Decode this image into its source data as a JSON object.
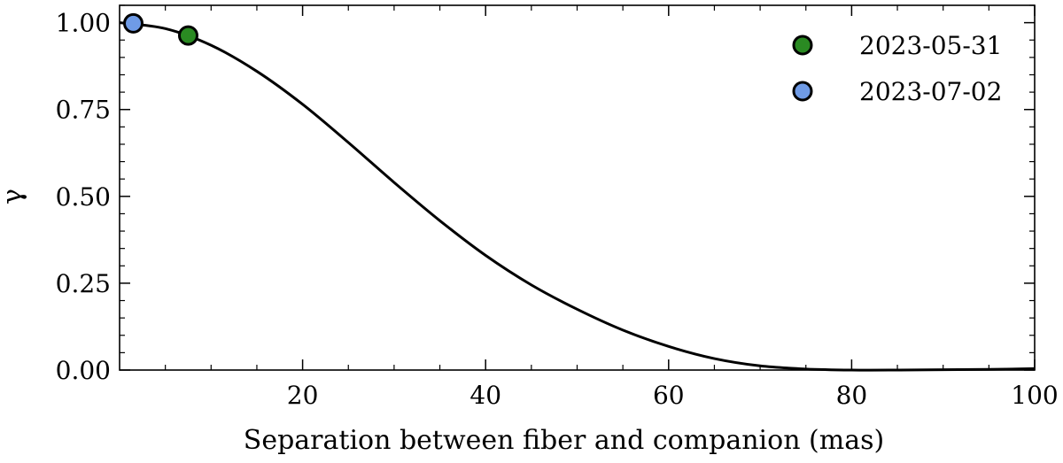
{
  "chart_data": {
    "type": "line",
    "xlabel": "Separation between fiber and companion (mas)",
    "ylabel": "γ",
    "xlim": [
      0,
      100
    ],
    "ylim": [
      0,
      1.05
    ],
    "x_ticks": [
      20,
      40,
      60,
      80,
      100
    ],
    "x_tick_labels": [
      "20",
      "40",
      "60",
      "80",
      "100"
    ],
    "y_ticks": [
      0,
      0.25,
      0.5,
      0.75,
      1.0
    ],
    "y_tick_labels": [
      "0.00",
      "0.25",
      "0.50",
      "0.75",
      "1.00"
    ],
    "grid": false,
    "legend_position": "top-right",
    "curve": {
      "color": "#000000",
      "x": [
        0,
        5,
        10,
        15,
        20,
        25,
        30,
        35,
        40,
        45,
        50,
        55,
        60,
        65,
        70,
        75,
        80,
        85,
        90,
        95,
        100
      ],
      "y": [
        1.0,
        0.983,
        0.935,
        0.86,
        0.765,
        0.655,
        0.54,
        0.43,
        0.33,
        0.245,
        0.175,
        0.115,
        0.068,
        0.033,
        0.012,
        0.003,
        0.0,
        0.0,
        0.001,
        0.002,
        0.004
      ]
    },
    "series": [
      {
        "name": "2023-05-31",
        "color": "#2a8a22",
        "x": [
          7.5
        ],
        "y": [
          0.963
        ]
      },
      {
        "name": "2023-07-02",
        "color": "#6f9be6",
        "x": [
          1.5
        ],
        "y": [
          0.998
        ]
      }
    ]
  }
}
